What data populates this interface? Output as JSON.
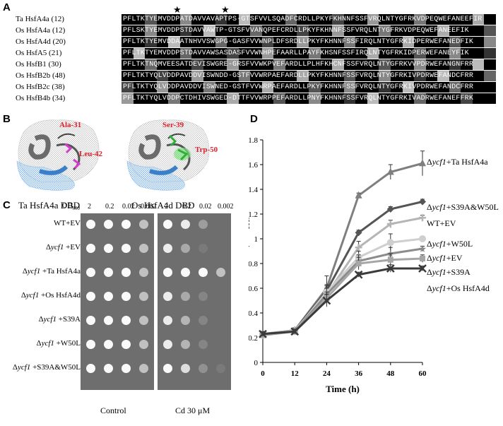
{
  "panel_a": {
    "letter": "A",
    "stars": [
      "★",
      "★"
    ],
    "rows": [
      {
        "label": "Ta HsfA4a (12)",
        "seq": "PFLTKTYEMVDDPATDAVVAVAPTPS-GTSFVVLSQADFCRDLLPKYFKHNNFSSFVRQLNTYGFRKVDPEQWEFANEEFIR"
      },
      {
        "label": "Os HsfA4a (12)",
        "seq": "PFLSKTYEMVDDPSTDAVVAWTP-GTSFVVANQPEFCRDLLPKYFKHNNFSSFVRQLNTYGFRKVDPEQWEFANEEFIK"
      },
      {
        "label": "Os HsfA4d (20)",
        "seq": "PFLTKTYEMVDDAATNHVVSWGPG-GASFVVWNPLDFSRDLLPKYFKHNNFSSFIRQLNTYGFRKIDPERWEFANEDFIK"
      },
      {
        "label": "Os HsfA5 (21)",
        "seq": "PFLTKTYEMVDDPSTDAVVAWSASDASFVVWNHPEFAARLLPAYFKHSNFSSFIRQLNTYGFRKIDPERWEFANEYFIK"
      },
      {
        "label": "Os HsfB1 (30)",
        "seq": "PFLTKTNQMVEESATDEVISWGRE-GRSFVVWKPVEFARDLLPLHFKHCNFSSFVRQLNTYGFRKVVPDRWEFANGNFRR"
      },
      {
        "label": "Os HsfB2b (48)",
        "seq": "PFLTKTYQLVDDPAVDDVISWNDD-GSTFVVWRPAEFARDLLPKYFKHNNFSSFVRQLNTYGFRKIVPDRWEFANDCFRR"
      },
      {
        "label": "Os HsfB2c (38)",
        "seq": "PFLTKTYQLVDDPAVDDVISWNED-GSTFVVWRPAEFARDLLPKYFKHNNFSSFVRQLNTYGFRKIVPDRWEFANDCFRR"
      },
      {
        "label": "Os HsfB4b (34)",
        "seq": "PFLTKTYQLVDDPCTDHIVSWGED-DTTFVVWRPPEFARDLLPNYFKHNNFSSFVRQLNTYGFRKIVADRWEFANEFFRK"
      }
    ]
  },
  "panel_b": {
    "letter": "B",
    "left_caption": "Ta HsfA4a DBD",
    "right_caption": "Os HsfA4d DBD",
    "left_residues": [
      "Ala-31",
      "Leu-42"
    ],
    "right_residues": [
      "Ser-39",
      "Trp-50"
    ]
  },
  "panel_c": {
    "letter": "C",
    "od_header": "OD",
    "od_sub": "600",
    "dilutions": [
      "2",
      "0.2",
      "0.02",
      "0.002"
    ],
    "strains": [
      {
        "delta": "",
        "gene": "",
        "suffix": "WT+EV"
      },
      {
        "delta": "Δ",
        "gene": "ycf1",
        "suffix": " +EV"
      },
      {
        "delta": "Δ",
        "gene": "ycf1",
        "suffix": " +Ta HsfA4a"
      },
      {
        "delta": "Δ",
        "gene": "ycf1",
        "suffix": " +Os HsfA4d"
      },
      {
        "delta": "Δ",
        "gene": "ycf1",
        "suffix": " +S39A"
      },
      {
        "delta": "Δ",
        "gene": "ycf1",
        "suffix": " +W50L"
      },
      {
        "delta": "Δ",
        "gene": "ycf1",
        "suffix": " +S39A&W50L"
      }
    ],
    "control_caption": "Control",
    "cd_caption": "Cd 30 μM",
    "control_growth": [
      [
        1,
        1,
        1,
        0.7
      ],
      [
        1,
        1,
        1,
        0.7
      ],
      [
        1,
        1,
        1,
        0.7
      ],
      [
        1,
        1,
        1,
        0.7
      ],
      [
        1,
        1,
        1,
        0.7
      ],
      [
        1,
        1,
        1,
        0.7
      ],
      [
        1,
        1,
        1,
        0.7
      ]
    ],
    "cd_growth": [
      [
        1,
        0.9,
        0.4,
        0
      ],
      [
        0.9,
        0.5,
        0.1,
        0
      ],
      [
        1,
        1,
        1,
        0.7
      ],
      [
        0.9,
        0.5,
        0.2,
        0
      ],
      [
        0.9,
        0.6,
        0.2,
        0
      ],
      [
        0.9,
        0.6,
        0.2,
        0
      ],
      [
        1,
        0.8,
        0.3,
        0.1
      ]
    ]
  },
  "panel_d": {
    "letter": "D",
    "chart_data": {
      "type": "line",
      "x": [
        0,
        12,
        24,
        36,
        48,
        60
      ],
      "xlabel": "Time (h)",
      "ylabel": "Growth (OD600)",
      "ylabel_main": "Growth (OD",
      "ylabel_sub": "600",
      "ylabel_close": ")",
      "xlim": [
        0,
        60
      ],
      "ylim": [
        0,
        1.8
      ],
      "xticks": [
        "0",
        "12",
        "24",
        "36",
        "48",
        "60"
      ],
      "yticks": [
        "0",
        "0.2",
        "0.4",
        "0.6",
        "0.8",
        "1",
        "1.2",
        "1.4",
        "1.6",
        "1.8"
      ],
      "series": [
        {
          "name": "Δycf1+Ta HsfA4a",
          "values": [
            0.22,
            0.26,
            0.6,
            1.35,
            1.54,
            1.61
          ],
          "errors": [
            0.02,
            0.02,
            0.1,
            0.02,
            0.06,
            0.1
          ],
          "color": "#7f7f7f",
          "marker": "triangle"
        },
        {
          "name": "Δycf1+S39A&W50L",
          "values": [
            0.23,
            0.26,
            0.58,
            1.05,
            1.24,
            1.3
          ],
          "errors": [
            0.02,
            0.02,
            0.05,
            0.02,
            0.02,
            0.02
          ],
          "color": "#555555",
          "marker": "diamond"
        },
        {
          "name": "WT+EV",
          "values": [
            0.23,
            0.26,
            0.55,
            0.93,
            1.12,
            1.17
          ],
          "errors": [
            0.02,
            0.02,
            0.05,
            0.05,
            0.03,
            0.02
          ],
          "color": "#b5b5b5",
          "marker": "plus"
        },
        {
          "name": "Δycf1+W50L",
          "values": [
            0.22,
            0.25,
            0.57,
            0.85,
            0.97,
            1.0
          ],
          "errors": [
            0.02,
            0.02,
            0.05,
            0.05,
            0.07,
            0.02
          ],
          "color": "#cfcfcf",
          "marker": "circle"
        },
        {
          "name": "Δycf1+EV",
          "values": [
            0.23,
            0.25,
            0.55,
            0.82,
            0.88,
            0.92
          ],
          "errors": [
            0.02,
            0.02,
            0.05,
            0.05,
            0.05,
            0.02
          ],
          "color": "#8c8c8c",
          "marker": "star"
        },
        {
          "name": "Δycf1+S39A",
          "values": [
            0.22,
            0.25,
            0.52,
            0.8,
            0.83,
            0.84
          ],
          "errors": [
            0.02,
            0.02,
            0.05,
            0.05,
            0.05,
            0.03
          ],
          "color": "#a6a6a6",
          "marker": "square"
        },
        {
          "name": "Δycf1+Os HsfA4d",
          "values": [
            0.23,
            0.25,
            0.5,
            0.71,
            0.76,
            0.76
          ],
          "errors": [
            0.02,
            0.02,
            0.05,
            0.02,
            0.03,
            0.02
          ],
          "color": "#3a3a3a",
          "marker": "x"
        }
      ],
      "legend_labels": [
        {
          "delta": "Δ",
          "gene": "ycf1",
          "rest": "+Ta HsfA4a"
        },
        {
          "delta": "Δ",
          "gene": "ycf1",
          "rest": "+S39A&W50L"
        },
        {
          "delta": "",
          "gene": "",
          "rest": "WT+EV"
        },
        {
          "delta": "Δ",
          "gene": "ycf1",
          "rest": "+W50L"
        },
        {
          "delta": "Δ",
          "gene": "ycf1",
          "rest": "+EV"
        },
        {
          "delta": "Δ",
          "gene": "ycf1",
          "rest": "+S39A"
        },
        {
          "delta": "Δ",
          "gene": "ycf1",
          "rest": "+Os HsfA4d"
        }
      ],
      "grid": false,
      "legend_placement": "right, inline at line ends"
    }
  }
}
